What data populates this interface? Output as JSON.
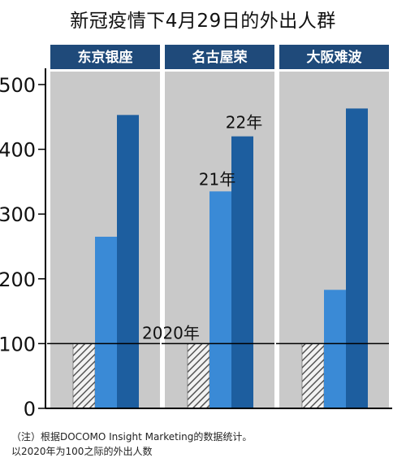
{
  "title": "新冠疫情下4月29日的外出人群",
  "chart_data": {
    "type": "bar",
    "title": "新冠疫情下4月29日的外出人群",
    "categories": [
      "东京银座",
      "名古屋荣",
      "大阪难波"
    ],
    "series": [
      {
        "name": "2020年",
        "values": [
          100,
          100,
          100
        ]
      },
      {
        "name": "21年",
        "values": [
          265,
          335,
          183
        ]
      },
      {
        "name": "22年",
        "values": [
          453,
          420,
          463
        ]
      }
    ],
    "ylim": [
      0,
      520
    ],
    "yticks": [
      "0",
      "100",
      "200",
      "300",
      "400",
      "500"
    ],
    "reference_value": 100,
    "grid": false,
    "colors": {
      "panel": "#c9c9c9",
      "header": "#1f4a7a",
      "bar_2021": "#3a8ad6",
      "bar_2022": "#1d5e9f",
      "bar_2020_hatch": "#555555",
      "axis": "#000000"
    }
  },
  "notes": {
    "line1": "（注）根据DOCOMO Insight Marketing的数据统计。",
    "line2": "以2020年为100之际的外出人数"
  }
}
